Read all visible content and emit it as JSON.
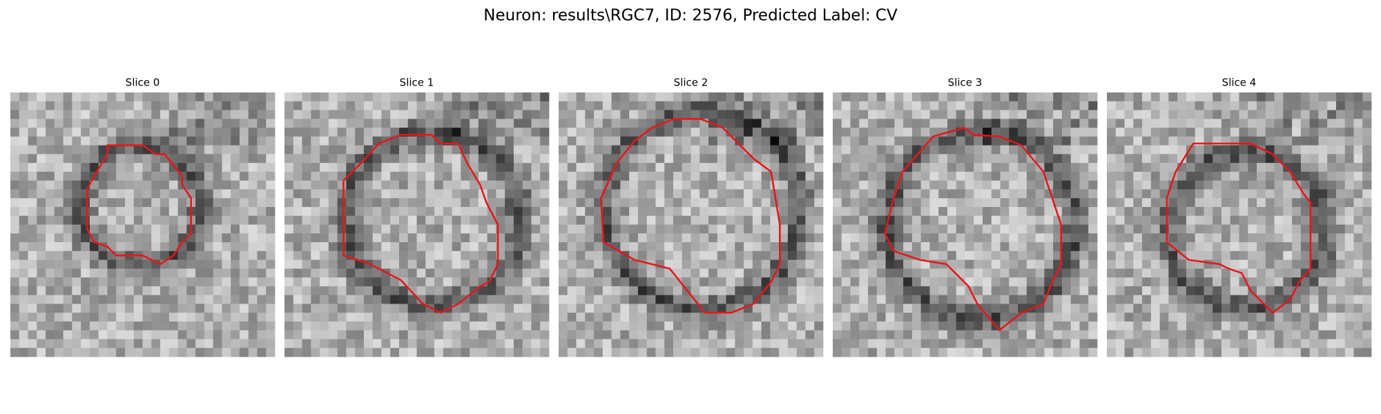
{
  "title": "Neuron: results\\RGC7, ID: 2576, Predicted Label: CV",
  "panels": [
    {
      "title": "Slice 0"
    },
    {
      "title": "Slice 1"
    },
    {
      "title": "Slice 2"
    },
    {
      "title": "Slice 3"
    },
    {
      "title": "Slice 4"
    }
  ]
}
